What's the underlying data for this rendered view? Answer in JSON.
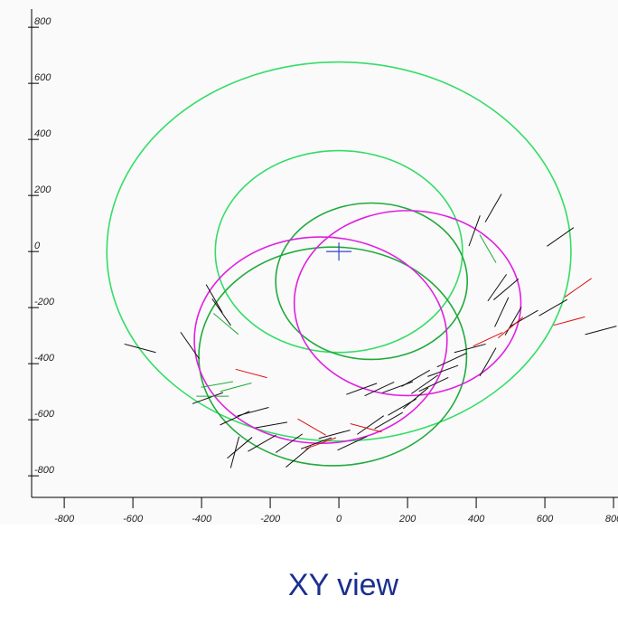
{
  "chart_data": {
    "type": "event-display",
    "title": "XY view",
    "xlim": [
      -895,
      813
    ],
    "ylim": [
      -877,
      865
    ],
    "xticks": [
      -800,
      -600,
      -400,
      -200,
      0,
      200,
      400,
      600,
      800
    ],
    "yticks": [
      -800,
      -600,
      -400,
      -200,
      0,
      200,
      400,
      600,
      800
    ],
    "vertex": [
      0,
      0
    ],
    "vertex_color": "#3344cc",
    "circles": {
      "x": [
        0,
        0,
        95,
        -18,
        200,
        -53
      ],
      "y": [
        0,
        0,
        -106,
        -374,
        -184,
        -316
      ],
      "r": [
        676,
        360,
        279,
        390,
        330,
        368
      ],
      "color": [
        "#33dd66",
        "#33dd66",
        "#1faa3a",
        "#1faa3a",
        "#e020e0",
        "#e020e0"
      ]
    },
    "hits": {
      "x": [
        450,
        645,
        -579,
        -363,
        -342,
        -434,
        -382,
        -303,
        -250,
        -197,
        -224,
        -303,
        -145,
        -118,
        -66,
        -13,
        39,
        92,
        145,
        184,
        224,
        250,
        303,
        329,
        382,
        434,
        474,
        487,
        461,
        508,
        539,
        624,
        763,
        66,
        118,
        171,
        224,
        276,
        -289,
        395,
        697,
        671,
        434,
        -255,
        -79,
        79,
        -53,
        500,
        -355,
        -300,
        -329,
        434,
        -368
      ],
      "y": [
        155,
        52,
        -345,
        -168,
        -216,
        -335,
        -523,
        -594,
        -571,
        -619,
        -684,
        -716,
        -684,
        -732,
        -684,
        -652,
        -684,
        -619,
        -603,
        -555,
        -523,
        -474,
        -426,
        -387,
        -345,
        -394,
        -216,
        -135,
        -129,
        -248,
        -239,
        -200,
        -281,
        -490,
        -490,
        -484,
        -452,
        -474,
        -700,
        74,
        -129,
        -248,
        -313,
        -435,
        -626,
        -629,
        -684,
        -271,
        -474,
        -484,
        -258,
        10,
        -516
      ],
      "angle": [
        60,
        35,
        -15,
        -60,
        -55,
        -55,
        20,
        25,
        15,
        10,
        30,
        75,
        35,
        40,
        20,
        15,
        25,
        35,
        30,
        30,
        40,
        35,
        20,
        25,
        15,
        60,
        65,
        40,
        55,
        60,
        30,
        30,
        15,
        20,
        25,
        20,
        30,
        25,
        40,
        70,
        35,
        15,
        25,
        -15,
        -30,
        -15,
        20,
        40,
        10,
        15,
        -40,
        -60,
        0
      ],
      "color": [
        "#111111",
        "#111111",
        "#111111",
        "#111111",
        "#111111",
        "#111111",
        "#111111",
        "#111111",
        "#111111",
        "#111111",
        "#111111",
        "#111111",
        "#111111",
        "#111111",
        "#111111",
        "#111111",
        "#111111",
        "#111111",
        "#111111",
        "#111111",
        "#111111",
        "#111111",
        "#111111",
        "#111111",
        "#111111",
        "#111111",
        "#111111",
        "#111111",
        "#111111",
        "#111111",
        "#111111",
        "#111111",
        "#111111",
        "#111111",
        "#111111",
        "#111111",
        "#111111",
        "#111111",
        "#111111",
        "#111111",
        "#dd1111",
        "#dd1111",
        "#dd1111",
        "#dd1111",
        "#dd1111",
        "#dd1111",
        "#dd1111",
        "#dd1111",
        "#1faa3a",
        "#1faa3a",
        "#1faa3a",
        "#1faa3a",
        "#1faa3a"
      ]
    }
  }
}
